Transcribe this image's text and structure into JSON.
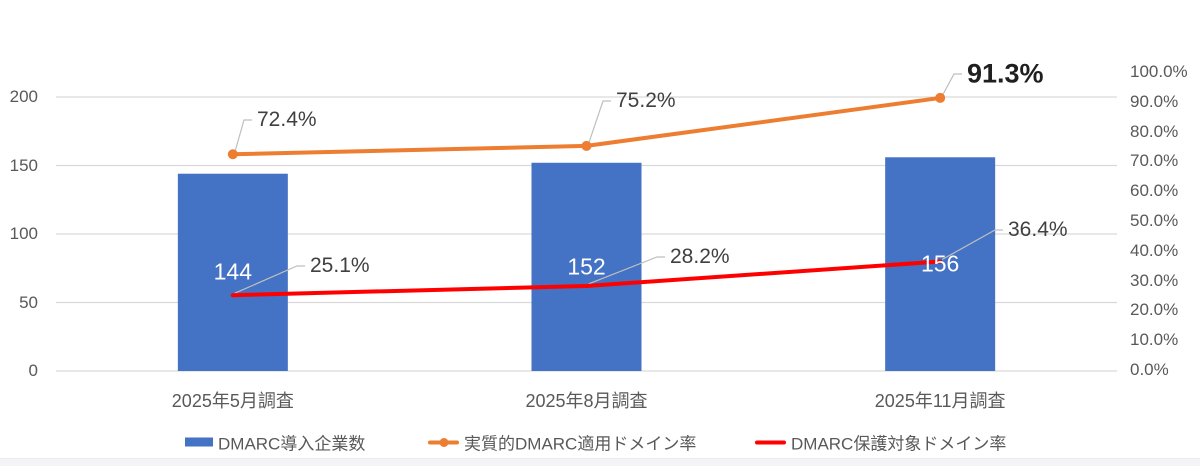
{
  "chart_data": {
    "type": "combo",
    "title": "",
    "categories": [
      "2025年5月調査",
      "2025年8月調査",
      "2025年11月調査"
    ],
    "series": [
      {
        "name": "DMARC導入企業数",
        "type": "bar",
        "axis": "left",
        "color": "#4472C4",
        "values": [
          144,
          152,
          156
        ],
        "data_labels": [
          "144",
          "152",
          "156"
        ]
      },
      {
        "name": "実質的DMARC適用ドメイン率",
        "type": "line",
        "axis": "right",
        "color": "#ED7D31",
        "marker": true,
        "values": [
          72.4,
          75.2,
          91.3
        ],
        "data_labels": [
          "72.4%",
          "75.2%",
          "91.3%"
        ],
        "emphasized_labels": [
          false,
          false,
          true
        ]
      },
      {
        "name": "DMARC保護対象ドメイン率",
        "type": "line",
        "axis": "right",
        "color": "#FF0000",
        "marker": false,
        "values": [
          25.1,
          28.2,
          36.4
        ],
        "data_labels": [
          "25.1%",
          "28.2%",
          "36.4%"
        ]
      }
    ],
    "left_axis": {
      "min": 0,
      "max": 200,
      "tick_labels": [
        "0",
        "50",
        "100",
        "150",
        "200"
      ]
    },
    "right_axis": {
      "min": 0,
      "max": 100,
      "tick_labels": [
        "0.0%",
        "10.0%",
        "20.0%",
        "30.0%",
        "40.0%",
        "50.0%",
        "60.0%",
        "70.0%",
        "80.0%",
        "90.0%",
        "100.0%"
      ]
    },
    "legend": {
      "position": "bottom",
      "entries": [
        "DMARC導入企業数",
        "実質的DMARC適用ドメイン率",
        "DMARC保護対象ドメイン率"
      ]
    },
    "grid": true
  },
  "colors": {
    "grid": "#D9D9D9",
    "axis_text": "#595959",
    "data_label_text": "#404040",
    "leader": "#BFBFBF",
    "bar_label_text": "#FFFFFF"
  }
}
